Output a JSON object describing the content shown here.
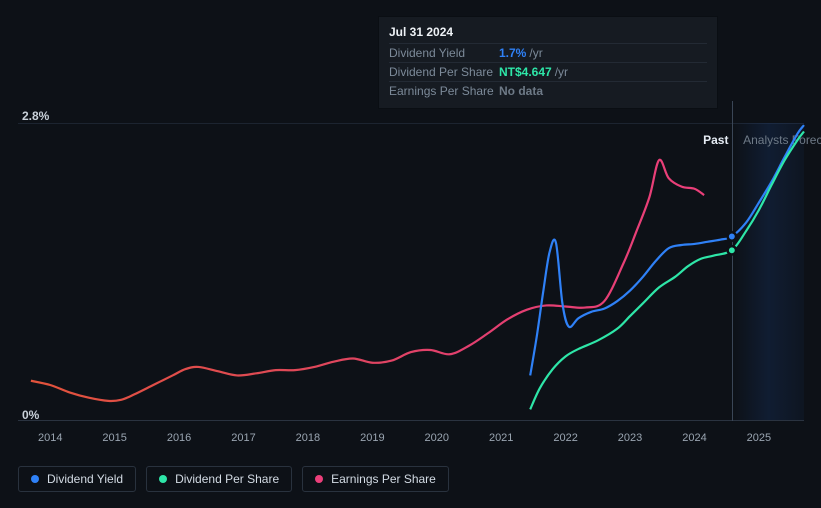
{
  "chart": {
    "type": "line",
    "background_color": "#0d1117",
    "grid_color": "#1c2430",
    "axis_text_color": "#9aa5b1",
    "y_axis": {
      "top_label": "2.8%",
      "bottom_label": "0%",
      "min": 0,
      "max": 2.8
    },
    "x_axis": {
      "start_year": 2013.5,
      "end_year": 2025.7,
      "ticks": [
        "2014",
        "2015",
        "2016",
        "2017",
        "2018",
        "2019",
        "2020",
        "2021",
        "2022",
        "2023",
        "2024",
        "2025"
      ]
    },
    "regions": {
      "past": {
        "label": "Past",
        "end_year": 2024.6,
        "label_color": "#e5ecf4"
      },
      "forecast": {
        "label": "Analysts Foreca",
        "label_color": "#6e7a87"
      }
    },
    "tooltip": {
      "date": "Jul 31 2024",
      "year_frac": 2024.58,
      "rows": [
        {
          "label": "Dividend Yield",
          "value": "1.7%",
          "unit": "/yr",
          "color": "#2f81f7"
        },
        {
          "label": "Dividend Per Share",
          "value": "NT$4.647",
          "unit": "/yr",
          "color": "#2ee6a8"
        },
        {
          "label": "Earnings Per Share",
          "value": "No data",
          "nodata": true
        }
      ],
      "markers": [
        {
          "series": "dividend_yield",
          "color": "#2f81f7",
          "y": 1.73
        },
        {
          "series": "dividend_per_share",
          "color": "#2ee6a8",
          "y": 1.6
        }
      ]
    },
    "legend": [
      {
        "label": "Dividend Yield",
        "color": "#2f81f7"
      },
      {
        "label": "Dividend Per Share",
        "color": "#2ee6a8"
      },
      {
        "label": "Earnings Per Share",
        "color": "#eb3f7a"
      }
    ],
    "series": {
      "earnings_per_share": {
        "color_stops": [
          {
            "t": 0.0,
            "c": "#e2533b"
          },
          {
            "t": 0.35,
            "c": "#df4a54"
          },
          {
            "t": 0.65,
            "c": "#e23f6f"
          },
          {
            "t": 1.0,
            "c": "#eb3f7a"
          }
        ],
        "line_width": 2.2,
        "points": [
          [
            2013.7,
            0.37
          ],
          [
            2014.0,
            0.33
          ],
          [
            2014.3,
            0.26
          ],
          [
            2014.6,
            0.21
          ],
          [
            2014.9,
            0.18
          ],
          [
            2015.1,
            0.19
          ],
          [
            2015.3,
            0.24
          ],
          [
            2015.6,
            0.33
          ],
          [
            2015.9,
            0.42
          ],
          [
            2016.1,
            0.48
          ],
          [
            2016.3,
            0.5
          ],
          [
            2016.6,
            0.46
          ],
          [
            2016.9,
            0.42
          ],
          [
            2017.2,
            0.44
          ],
          [
            2017.5,
            0.47
          ],
          [
            2017.8,
            0.47
          ],
          [
            2018.1,
            0.5
          ],
          [
            2018.4,
            0.55
          ],
          [
            2018.7,
            0.58
          ],
          [
            2019.0,
            0.54
          ],
          [
            2019.3,
            0.56
          ],
          [
            2019.6,
            0.64
          ],
          [
            2019.9,
            0.66
          ],
          [
            2020.2,
            0.62
          ],
          [
            2020.5,
            0.7
          ],
          [
            2020.8,
            0.82
          ],
          [
            2021.1,
            0.95
          ],
          [
            2021.4,
            1.04
          ],
          [
            2021.7,
            1.08
          ],
          [
            2022.0,
            1.07
          ],
          [
            2022.3,
            1.06
          ],
          [
            2022.6,
            1.12
          ],
          [
            2022.9,
            1.48
          ],
          [
            2023.1,
            1.78
          ],
          [
            2023.3,
            2.1
          ],
          [
            2023.45,
            2.45
          ],
          [
            2023.6,
            2.28
          ],
          [
            2023.8,
            2.2
          ],
          [
            2024.0,
            2.18
          ],
          [
            2024.15,
            2.12
          ]
        ]
      },
      "dividend_yield": {
        "color": "#2f81f7",
        "line_width": 2.2,
        "points": [
          [
            2021.45,
            0.42
          ],
          [
            2021.55,
            0.78
          ],
          [
            2021.65,
            1.2
          ],
          [
            2021.75,
            1.58
          ],
          [
            2021.85,
            1.67
          ],
          [
            2021.95,
            1.1
          ],
          [
            2022.05,
            0.88
          ],
          [
            2022.2,
            0.96
          ],
          [
            2022.4,
            1.02
          ],
          [
            2022.6,
            1.05
          ],
          [
            2022.8,
            1.12
          ],
          [
            2023.0,
            1.22
          ],
          [
            2023.2,
            1.35
          ],
          [
            2023.4,
            1.5
          ],
          [
            2023.6,
            1.62
          ],
          [
            2023.8,
            1.65
          ],
          [
            2024.0,
            1.66
          ],
          [
            2024.2,
            1.68
          ],
          [
            2024.4,
            1.7
          ],
          [
            2024.58,
            1.73
          ],
          [
            2024.8,
            1.86
          ],
          [
            2025.0,
            2.05
          ],
          [
            2025.2,
            2.25
          ],
          [
            2025.4,
            2.48
          ],
          [
            2025.6,
            2.7
          ],
          [
            2025.7,
            2.78
          ]
        ]
      },
      "dividend_per_share": {
        "color": "#2ee6a8",
        "line_width": 2.2,
        "points": [
          [
            2021.45,
            0.1
          ],
          [
            2021.6,
            0.3
          ],
          [
            2021.8,
            0.48
          ],
          [
            2022.0,
            0.6
          ],
          [
            2022.2,
            0.67
          ],
          [
            2022.5,
            0.75
          ],
          [
            2022.8,
            0.86
          ],
          [
            2023.0,
            0.98
          ],
          [
            2023.2,
            1.1
          ],
          [
            2023.45,
            1.25
          ],
          [
            2023.7,
            1.35
          ],
          [
            2023.9,
            1.45
          ],
          [
            2024.1,
            1.52
          ],
          [
            2024.3,
            1.55
          ],
          [
            2024.58,
            1.6
          ],
          [
            2024.8,
            1.78
          ],
          [
            2025.0,
            1.98
          ],
          [
            2025.2,
            2.22
          ],
          [
            2025.4,
            2.45
          ],
          [
            2025.6,
            2.64
          ],
          [
            2025.7,
            2.72
          ]
        ]
      }
    }
  }
}
